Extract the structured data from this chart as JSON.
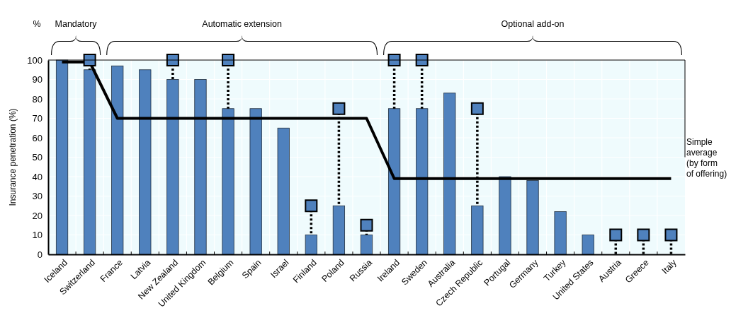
{
  "chart_data": {
    "type": "bar",
    "ylabel": "Insurance penetration (%)",
    "categories": [
      "Iceland",
      "Switzerland",
      "France",
      "Latvia",
      "New Zealand",
      "United Kingdom",
      "Belgium",
      "Spain",
      "Israel",
      "Finland",
      "Poland",
      "Russia",
      "Ireland",
      "Sweden",
      "Australia",
      "Czech Republic",
      "Portugal",
      "Germany",
      "Turkey",
      "United States",
      "Austria",
      "Greece",
      "Italy"
    ],
    "series": [
      {
        "color": "#4f81bd",
        "values": [
          100,
          95,
          97,
          95,
          90,
          90,
          75,
          75,
          65,
          10,
          25,
          10,
          75,
          75,
          83,
          25,
          40,
          38,
          22,
          10,
          null,
          null,
          null
        ]
      },
      {
        "type": "scatter",
        "marker": "square",
        "color": "#4f81bd",
        "values": [
          null,
          100,
          null,
          null,
          100,
          null,
          100,
          null,
          null,
          25,
          75,
          15,
          100,
          100,
          null,
          75,
          null,
          null,
          null,
          null,
          10,
          10,
          10
        ],
        "errors": [
          null,
          [
            95,
            100
          ],
          null,
          null,
          [
            90,
            100
          ],
          null,
          [
            75,
            100
          ],
          null,
          null,
          [
            10,
            25
          ],
          [
            25,
            75
          ],
          [
            10,
            15
          ],
          [
            75,
            100
          ],
          [
            75,
            100
          ],
          null,
          [
            25,
            75
          ],
          null,
          null,
          null,
          null,
          [
            0,
            10
          ],
          [
            0,
            10
          ],
          [
            0,
            10
          ]
        ],
        "line_style": "dotted"
      },
      {
        "type": "line",
        "name": "Simple average (by form of offering)",
        "color": "#000000",
        "values": [
          99,
          99,
          70,
          70,
          70,
          70,
          70,
          70,
          70,
          70,
          70,
          70,
          39,
          39,
          39,
          39,
          39,
          39,
          39,
          39,
          39,
          39,
          39
        ]
      }
    ],
    "ylim": [
      0,
      100
    ],
    "yticks": [
      0,
      10,
      20,
      30,
      40,
      50,
      60,
      70,
      80,
      90,
      100
    ],
    "grid": true,
    "legend": false,
    "annotations": [
      "%",
      "Mandatory",
      "Automatic extension",
      "Optional add-on"
    ]
  }
}
